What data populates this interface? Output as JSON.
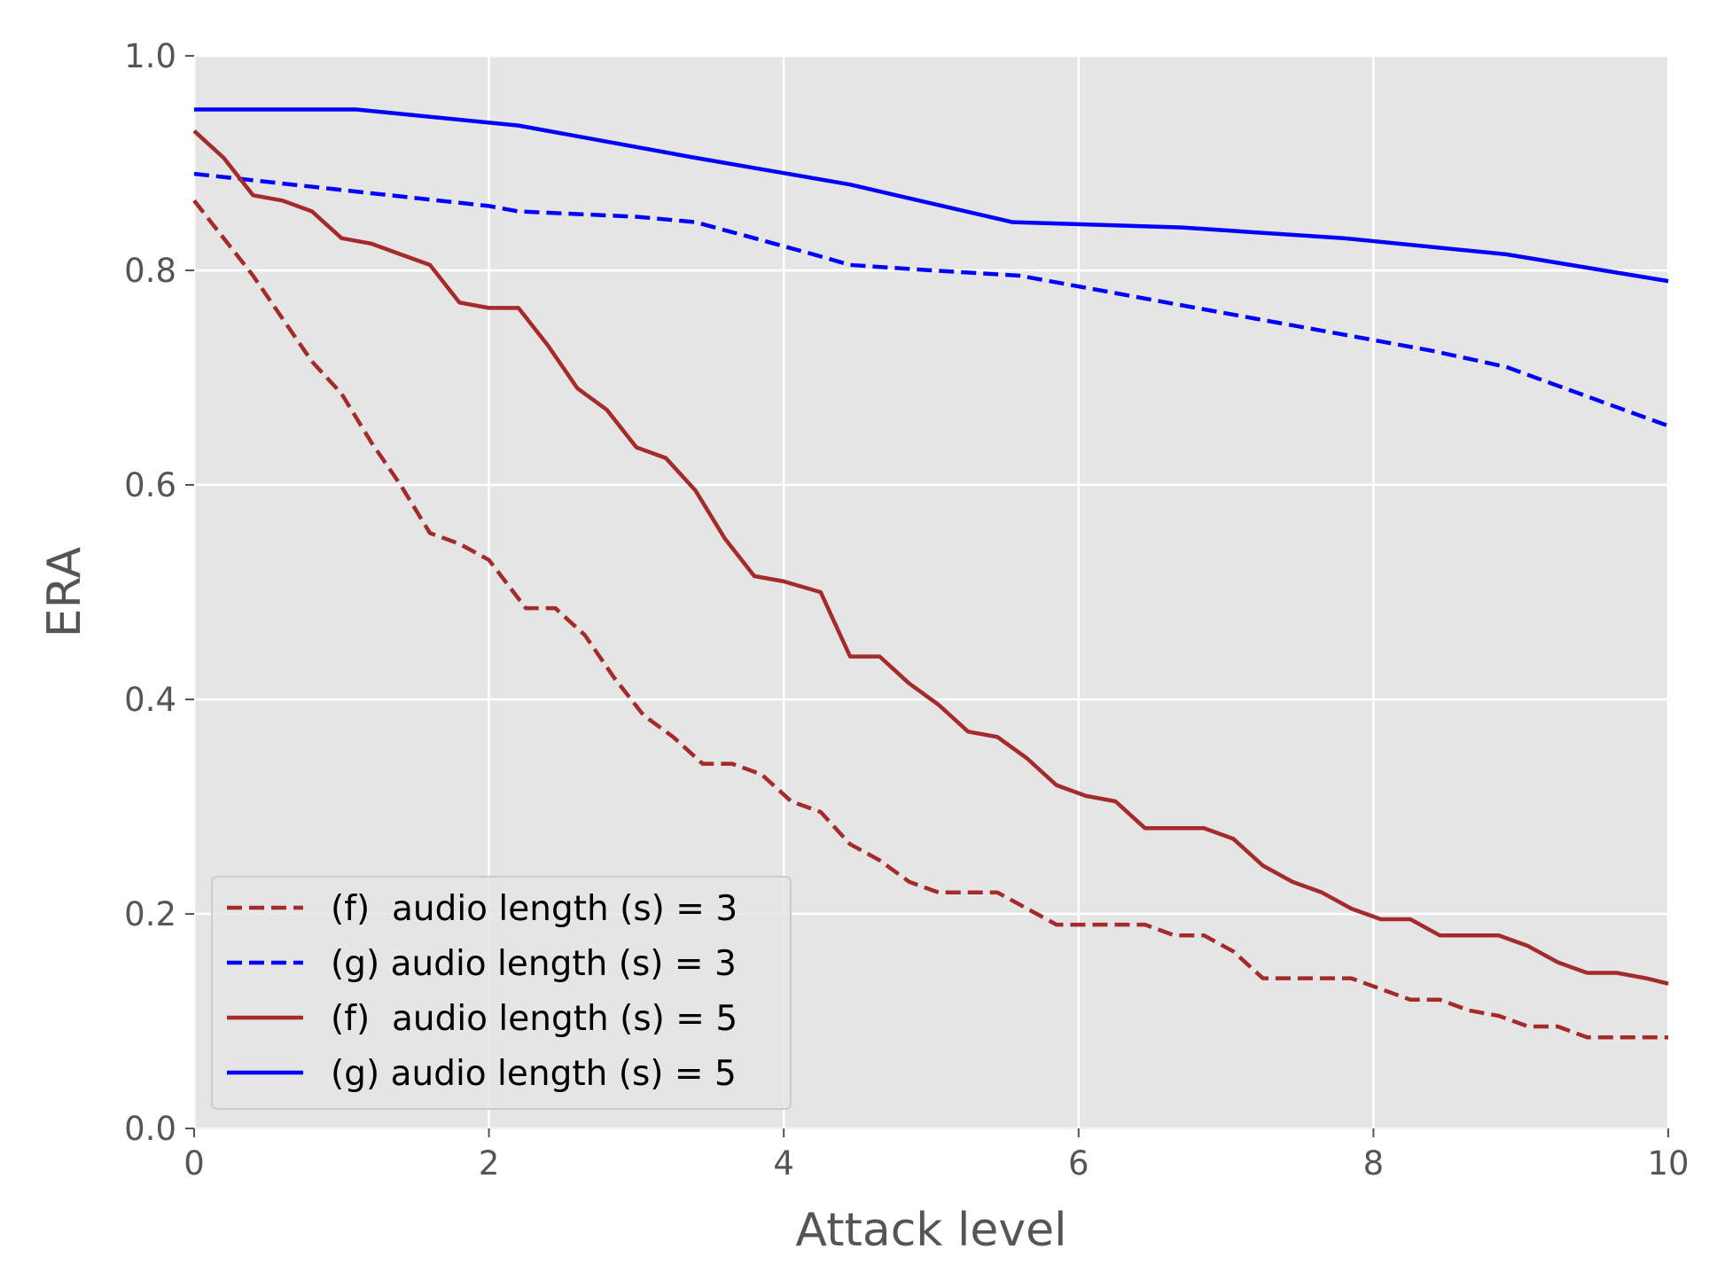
{
  "chart_data": {
    "type": "line",
    "title": "",
    "xlabel": "Attack level",
    "ylabel": "ERA",
    "xlim": [
      0,
      10
    ],
    "ylim": [
      0,
      1.0
    ],
    "xticks": [
      "0",
      "2",
      "4",
      "6",
      "8",
      "10"
    ],
    "xtick_values": [
      0,
      2,
      4,
      6,
      8,
      10
    ],
    "yticks": [
      "0.0",
      "0.2",
      "0.4",
      "0.6",
      "0.8",
      "1.0"
    ],
    "ytick_values": [
      0,
      0.2,
      0.4,
      0.6,
      0.8,
      1.0
    ],
    "grid": true,
    "legend_position": "lower-left",
    "series": [
      {
        "name": "(f)  audio length (s) = 3",
        "color": "#a52a2a",
        "style": "dashed",
        "x": [
          0,
          0.2,
          0.4,
          0.6,
          0.8,
          1.0,
          1.2,
          1.4,
          1.6,
          1.8,
          2.0,
          2.25,
          2.45,
          2.65,
          2.85,
          3.05,
          3.25,
          3.45,
          3.65,
          3.85,
          4.05,
          4.25,
          4.45,
          4.65,
          4.85,
          5.05,
          5.25,
          5.45,
          5.65,
          5.85,
          6.05,
          6.25,
          6.45,
          6.65,
          6.85,
          7.05,
          7.25,
          7.45,
          7.65,
          7.85,
          8.05,
          8.25,
          8.45,
          8.65,
          8.85,
          9.05,
          9.25,
          9.45,
          9.65,
          9.85,
          10.0
        ],
        "y": [
          0.865,
          0.83,
          0.795,
          0.755,
          0.715,
          0.685,
          0.64,
          0.6,
          0.555,
          0.545,
          0.53,
          0.485,
          0.485,
          0.46,
          0.42,
          0.385,
          0.365,
          0.34,
          0.34,
          0.33,
          0.305,
          0.295,
          0.265,
          0.25,
          0.23,
          0.22,
          0.22,
          0.22,
          0.205,
          0.19,
          0.19,
          0.19,
          0.19,
          0.18,
          0.18,
          0.165,
          0.14,
          0.14,
          0.14,
          0.14,
          0.13,
          0.12,
          0.12,
          0.11,
          0.105,
          0.095,
          0.095,
          0.085,
          0.085,
          0.085,
          0.085
        ]
      },
      {
        "name": "(g) audio length (s) = 3",
        "color": "#0000ff",
        "style": "dashed",
        "x": [
          0,
          1.0,
          2.0,
          2.2,
          3.0,
          3.4,
          3.8,
          4.2,
          4.45,
          5.0,
          5.6,
          6.0,
          6.8,
          7.2,
          7.6,
          8.0,
          8.4,
          8.9,
          9.2,
          9.6,
          10.0
        ],
        "y": [
          0.89,
          0.875,
          0.86,
          0.855,
          0.85,
          0.845,
          0.83,
          0.815,
          0.805,
          0.8,
          0.795,
          0.785,
          0.765,
          0.755,
          0.745,
          0.735,
          0.725,
          0.71,
          0.695,
          0.675,
          0.655
        ]
      },
      {
        "name": "(f)  audio length (s) = 5",
        "color": "#a52a2a",
        "style": "solid",
        "x": [
          0,
          0.2,
          0.4,
          0.6,
          0.8,
          1.0,
          1.2,
          1.4,
          1.6,
          1.8,
          2.0,
          2.2,
          2.4,
          2.6,
          2.8,
          3.0,
          3.2,
          3.4,
          3.6,
          3.8,
          4.0,
          4.25,
          4.45,
          4.65,
          4.85,
          5.05,
          5.25,
          5.45,
          5.65,
          5.85,
          6.05,
          6.25,
          6.45,
          6.65,
          6.85,
          7.05,
          7.25,
          7.45,
          7.65,
          7.85,
          8.05,
          8.25,
          8.45,
          8.65,
          8.85,
          9.05,
          9.25,
          9.45,
          9.65,
          9.85,
          10.0
        ],
        "y": [
          0.93,
          0.905,
          0.87,
          0.865,
          0.855,
          0.83,
          0.825,
          0.815,
          0.805,
          0.77,
          0.765,
          0.765,
          0.73,
          0.69,
          0.67,
          0.635,
          0.625,
          0.595,
          0.55,
          0.515,
          0.51,
          0.5,
          0.44,
          0.44,
          0.415,
          0.395,
          0.37,
          0.365,
          0.345,
          0.32,
          0.31,
          0.305,
          0.28,
          0.28,
          0.28,
          0.27,
          0.245,
          0.23,
          0.22,
          0.205,
          0.195,
          0.195,
          0.18,
          0.18,
          0.18,
          0.17,
          0.155,
          0.145,
          0.145,
          0.14,
          0.135
        ]
      },
      {
        "name": "(g) audio length (s) = 5",
        "color": "#0000ff",
        "style": "solid",
        "x": [
          0,
          1.1,
          2.2,
          3.4,
          4.45,
          5.55,
          6.7,
          7.8,
          8.9,
          10.0
        ],
        "y": [
          0.95,
          0.95,
          0.935,
          0.905,
          0.88,
          0.845,
          0.84,
          0.83,
          0.815,
          0.79
        ]
      }
    ]
  }
}
